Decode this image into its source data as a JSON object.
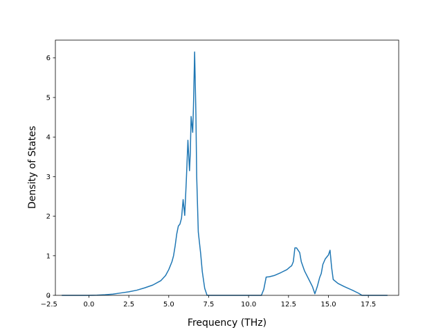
{
  "chart_data": {
    "type": "line",
    "title": "",
    "xlabel": "Frequency (THz)",
    "ylabel": "Density of States",
    "xlim": [
      -2.1,
      19.4
    ],
    "ylim": [
      0,
      6.45
    ],
    "x_ticks": [
      -2.5,
      0.0,
      2.5,
      5.0,
      7.5,
      10.0,
      12.5,
      15.0,
      17.5
    ],
    "x_tick_labels": [
      "−2.5",
      "0.0",
      "2.5",
      "5.0",
      "7.5",
      "10.0",
      "12.5",
      "15.0",
      "17.5"
    ],
    "y_ticks": [
      0,
      1,
      2,
      3,
      4,
      5,
      6
    ],
    "y_tick_labels": [
      "0",
      "1",
      "2",
      "3",
      "4",
      "5",
      "6"
    ],
    "grid": false,
    "legend": "none",
    "series": [
      {
        "color": "#1f77b4",
        "points": [
          [
            -1.7,
            0.0
          ],
          [
            -1.0,
            0.0
          ],
          [
            0.0,
            0.0
          ],
          [
            0.5,
            0.005
          ],
          [
            1.0,
            0.015
          ],
          [
            1.5,
            0.03
          ],
          [
            2.0,
            0.06
          ],
          [
            2.5,
            0.09
          ],
          [
            3.0,
            0.13
          ],
          [
            3.5,
            0.19
          ],
          [
            4.0,
            0.26
          ],
          [
            4.5,
            0.37
          ],
          [
            4.8,
            0.5
          ],
          [
            5.0,
            0.65
          ],
          [
            5.2,
            0.85
          ],
          [
            5.3,
            1.0
          ],
          [
            5.4,
            1.25
          ],
          [
            5.5,
            1.55
          ],
          [
            5.6,
            1.75
          ],
          [
            5.7,
            1.8
          ],
          [
            5.8,
            1.95
          ],
          [
            5.9,
            2.42
          ],
          [
            6.0,
            2.02
          ],
          [
            6.1,
            2.9
          ],
          [
            6.2,
            3.92
          ],
          [
            6.3,
            3.15
          ],
          [
            6.35,
            3.6
          ],
          [
            6.4,
            4.52
          ],
          [
            6.5,
            4.12
          ],
          [
            6.55,
            4.8
          ],
          [
            6.62,
            6.15
          ],
          [
            6.7,
            4.6
          ],
          [
            6.75,
            3.0
          ],
          [
            6.85,
            1.6
          ],
          [
            7.0,
            1.05
          ],
          [
            7.1,
            0.6
          ],
          [
            7.25,
            0.18
          ],
          [
            7.4,
            0.0
          ],
          [
            8.0,
            0.0
          ],
          [
            9.0,
            0.0
          ],
          [
            10.0,
            0.0
          ],
          [
            10.8,
            0.0
          ],
          [
            10.95,
            0.15
          ],
          [
            11.1,
            0.46
          ],
          [
            11.3,
            0.47
          ],
          [
            11.6,
            0.5
          ],
          [
            12.0,
            0.57
          ],
          [
            12.4,
            0.65
          ],
          [
            12.6,
            0.72
          ],
          [
            12.7,
            0.75
          ],
          [
            12.8,
            0.85
          ],
          [
            12.9,
            1.2
          ],
          [
            13.0,
            1.2
          ],
          [
            13.2,
            1.08
          ],
          [
            13.3,
            0.85
          ],
          [
            13.5,
            0.62
          ],
          [
            13.8,
            0.38
          ],
          [
            14.0,
            0.22
          ],
          [
            14.15,
            0.04
          ],
          [
            14.3,
            0.22
          ],
          [
            14.45,
            0.45
          ],
          [
            14.55,
            0.55
          ],
          [
            14.65,
            0.78
          ],
          [
            14.8,
            0.92
          ],
          [
            15.0,
            1.02
          ],
          [
            15.1,
            1.14
          ],
          [
            15.2,
            0.7
          ],
          [
            15.3,
            0.4
          ],
          [
            15.6,
            0.3
          ],
          [
            16.0,
            0.22
          ],
          [
            16.5,
            0.13
          ],
          [
            16.9,
            0.05
          ],
          [
            17.1,
            0.0
          ],
          [
            18.0,
            0.0
          ],
          [
            18.7,
            0.0
          ]
        ]
      }
    ]
  }
}
